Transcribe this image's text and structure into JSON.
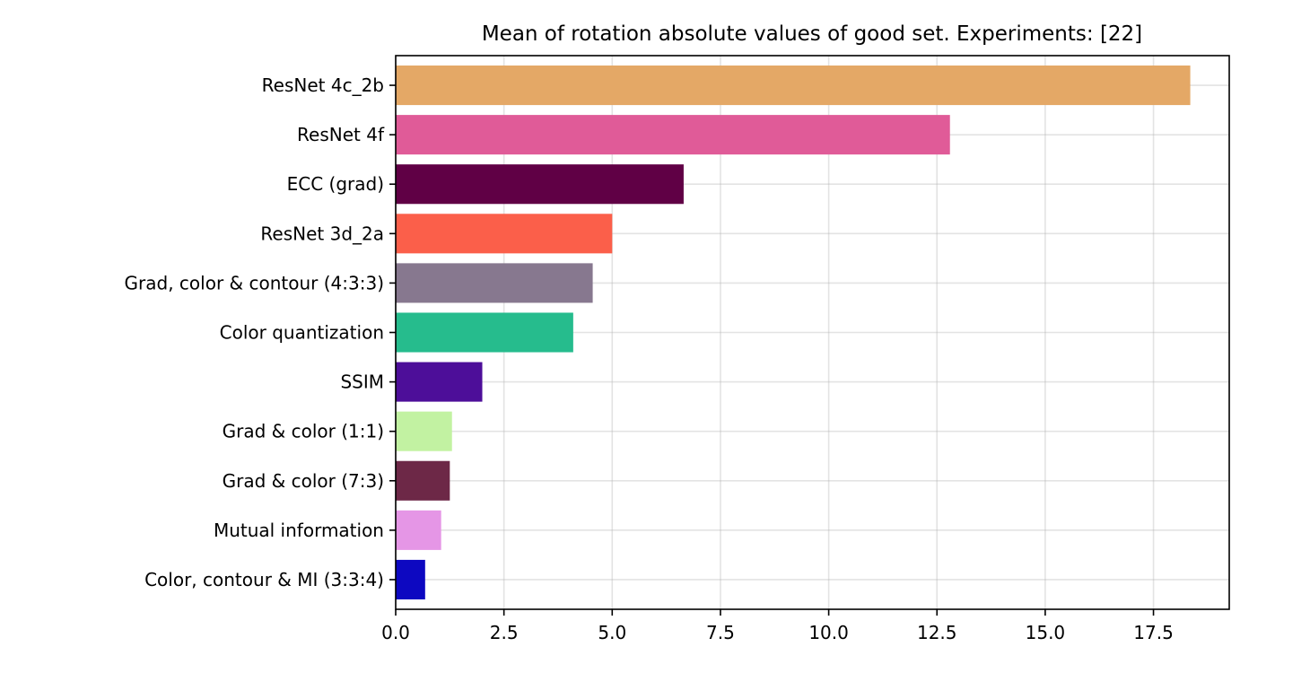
{
  "chart_data": {
    "type": "bar",
    "orientation": "horizontal",
    "title": "Mean of rotation absolute values of good set. Experiments: [22]",
    "xlabel": "",
    "ylabel": "",
    "xlim": [
      0,
      19.25
    ],
    "grid": true,
    "x_ticks": [
      "0.0",
      "2.5",
      "5.0",
      "7.5",
      "10.0",
      "12.5",
      "15.0",
      "17.5"
    ],
    "x_tick_values": [
      0,
      2.5,
      5,
      7.5,
      10,
      12.5,
      15,
      17.5
    ],
    "categories": [
      "ResNet 4c_2b",
      "ResNet 4f",
      "ECC (grad)",
      "ResNet 3d_2a",
      "Grad, color & contour (4:3:3)",
      "Color quantization",
      "SSIM",
      "Grad & color (1:1)",
      "Grad & color (7:3)",
      "Mutual information",
      "Color, contour & MI (3:3:4)"
    ],
    "values": [
      18.35,
      12.8,
      6.65,
      5.0,
      4.55,
      4.1,
      2.0,
      1.3,
      1.25,
      1.05,
      0.68
    ],
    "colors": [
      "#e4a866",
      "#e05b98",
      "#600045",
      "#fb5f4a",
      "#87788f",
      "#26bc8d",
      "#4d0e99",
      "#c2f2a2",
      "#6d2847",
      "#e596e6",
      "#0d08c1"
    ]
  }
}
